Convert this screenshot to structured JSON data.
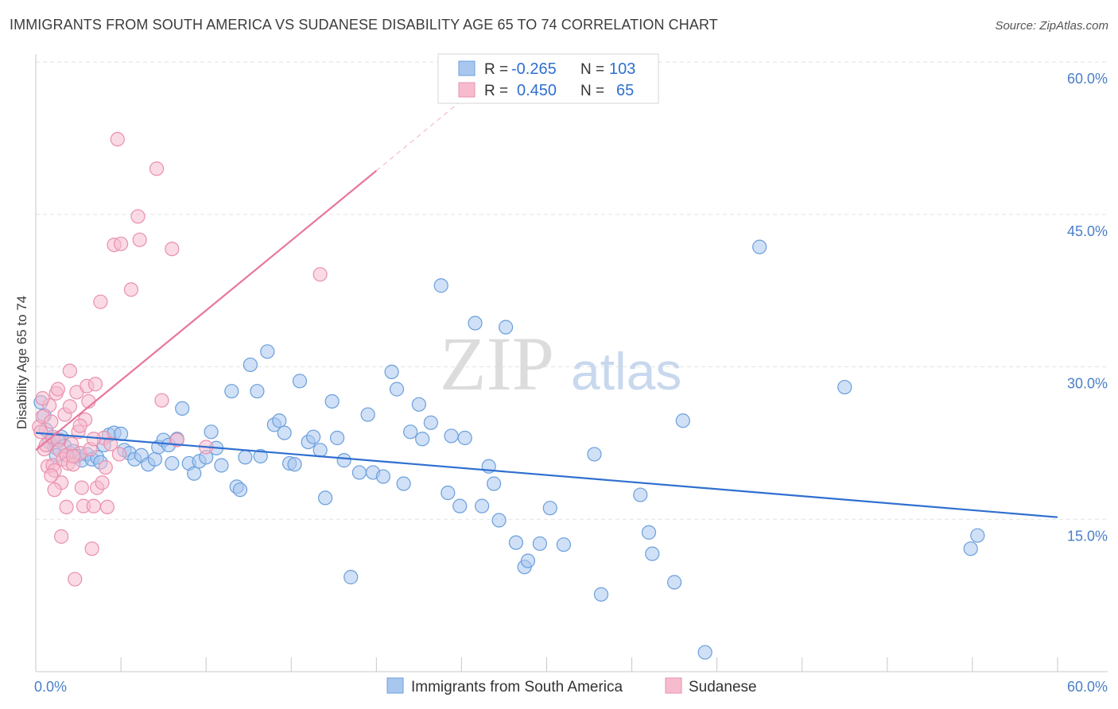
{
  "title": "IMMIGRANTS FROM SOUTH AMERICA VS SUDANESE DISABILITY AGE 65 TO 74 CORRELATION CHART",
  "source": "Source: ZipAtlas.com",
  "watermark": {
    "part1": "ZIP",
    "part2": "atlas"
  },
  "colors": {
    "blue_fill": "#a9c7ee",
    "blue_stroke": "#6a9fdc",
    "blue_line": "#2f6fd0",
    "pink_fill": "#f6bccd",
    "pink_stroke": "#ea8fae",
    "pink_line": "#e8769c",
    "grid": "#e3e3e3",
    "tick_text": "#4a7fc8"
  },
  "legend_stats": [
    {
      "r_label": "R =",
      "r_value": "-0.265",
      "n_label": "N =",
      "n_value": "103"
    },
    {
      "r_label": "R =",
      "r_value": "0.450",
      "n_label": "N =",
      "n_value": "65"
    }
  ],
  "chart_data": {
    "type": "scatter",
    "title": "IMMIGRANTS FROM SOUTH AMERICA VS SUDANESE DISABILITY AGE 65 TO 74 CORRELATION CHART",
    "xlabel": "",
    "ylabel": "Disability Age 65 to 74",
    "xlim": [
      0,
      60
    ],
    "ylim": [
      0,
      60
    ],
    "x_tick_labels": [
      {
        "value": 0,
        "label": "0.0%"
      },
      {
        "value": 60,
        "label": "60.0%"
      }
    ],
    "y_tick_labels": [
      {
        "value": 15,
        "label": "15.0%"
      },
      {
        "value": 30,
        "label": "30.0%"
      },
      {
        "value": 45,
        "label": "45.0%"
      },
      {
        "value": 60,
        "label": "60.0%"
      }
    ],
    "legend_bottom": [
      "Immigrants from South America",
      "Sudanese"
    ],
    "series": [
      {
        "name": "Immigrants from South America",
        "color": "blue",
        "trend": {
          "x0": 0,
          "y0": 23.5,
          "x1": 60,
          "y1": 15.2
        },
        "points": [
          [
            0.3,
            26.5
          ],
          [
            0.5,
            25.2
          ],
          [
            0.6,
            23.8
          ],
          [
            0.8,
            22.6
          ],
          [
            1.0,
            22.9
          ],
          [
            1.1,
            22.1
          ],
          [
            1.2,
            21.3
          ],
          [
            1.4,
            22.8
          ],
          [
            1.5,
            23.1
          ],
          [
            1.7,
            22.2
          ],
          [
            2.0,
            21.5
          ],
          [
            2.2,
            21.7
          ],
          [
            2.4,
            21.2
          ],
          [
            2.7,
            20.8
          ],
          [
            3.0,
            21.4
          ],
          [
            3.3,
            20.9
          ],
          [
            3.6,
            21.1
          ],
          [
            3.8,
            20.6
          ],
          [
            4.0,
            22.3
          ],
          [
            4.3,
            23.3
          ],
          [
            4.6,
            23.5
          ],
          [
            5.0,
            23.4
          ],
          [
            5.2,
            21.8
          ],
          [
            5.5,
            21.5
          ],
          [
            5.8,
            20.9
          ],
          [
            6.2,
            21.3
          ],
          [
            6.6,
            20.4
          ],
          [
            7.0,
            20.9
          ],
          [
            7.2,
            22.1
          ],
          [
            7.5,
            22.8
          ],
          [
            7.8,
            22.3
          ],
          [
            8.0,
            20.5
          ],
          [
            8.3,
            22.9
          ],
          [
            8.6,
            25.9
          ],
          [
            9.0,
            20.5
          ],
          [
            9.3,
            19.5
          ],
          [
            9.6,
            20.7
          ],
          [
            10.0,
            21.1
          ],
          [
            10.3,
            23.6
          ],
          [
            10.6,
            22.0
          ],
          [
            10.9,
            20.3
          ],
          [
            11.5,
            27.6
          ],
          [
            11.8,
            18.2
          ],
          [
            12.0,
            17.9
          ],
          [
            12.3,
            21.1
          ],
          [
            12.6,
            30.2
          ],
          [
            13.0,
            27.6
          ],
          [
            13.2,
            21.2
          ],
          [
            13.6,
            31.5
          ],
          [
            14.0,
            24.3
          ],
          [
            14.3,
            24.7
          ],
          [
            14.6,
            23.5
          ],
          [
            14.9,
            20.5
          ],
          [
            15.2,
            20.4
          ],
          [
            15.5,
            28.6
          ],
          [
            16.0,
            22.6
          ],
          [
            16.3,
            23.1
          ],
          [
            16.7,
            21.8
          ],
          [
            17.0,
            17.1
          ],
          [
            17.4,
            26.6
          ],
          [
            17.7,
            23.0
          ],
          [
            18.1,
            20.8
          ],
          [
            18.5,
            9.3
          ],
          [
            19.0,
            19.6
          ],
          [
            19.5,
            25.3
          ],
          [
            19.8,
            19.6
          ],
          [
            20.4,
            19.2
          ],
          [
            20.9,
            29.5
          ],
          [
            21.2,
            27.8
          ],
          [
            21.6,
            18.5
          ],
          [
            22.0,
            23.6
          ],
          [
            22.5,
            26.3
          ],
          [
            22.7,
            22.9
          ],
          [
            23.2,
            24.5
          ],
          [
            23.8,
            38.0
          ],
          [
            24.2,
            17.6
          ],
          [
            24.4,
            23.2
          ],
          [
            24.9,
            16.3
          ],
          [
            25.2,
            23.0
          ],
          [
            25.8,
            34.3
          ],
          [
            26.2,
            16.3
          ],
          [
            26.6,
            20.2
          ],
          [
            26.9,
            18.5
          ],
          [
            27.2,
            14.9
          ],
          [
            27.6,
            33.9
          ],
          [
            28.2,
            12.7
          ],
          [
            28.7,
            10.3
          ],
          [
            28.9,
            10.9
          ],
          [
            29.6,
            12.6
          ],
          [
            30.2,
            16.1
          ],
          [
            31.0,
            12.5
          ],
          [
            32.8,
            21.4
          ],
          [
            33.2,
            7.6
          ],
          [
            35.5,
            17.4
          ],
          [
            36.0,
            13.7
          ],
          [
            36.2,
            11.6
          ],
          [
            37.5,
            8.8
          ],
          [
            38.0,
            24.7
          ],
          [
            39.3,
            1.9
          ],
          [
            42.5,
            41.8
          ],
          [
            47.5,
            28.0
          ],
          [
            54.9,
            12.1
          ],
          [
            55.3,
            13.4
          ]
        ]
      },
      {
        "name": "Sudanese",
        "color": "pink",
        "trend": {
          "x0": 0,
          "y0": 21.8,
          "x1": 20,
          "y1": 49.3,
          "x_dash_end": 25.5,
          "y_dash_end": 56.9
        },
        "points": [
          [
            0.2,
            24.1
          ],
          [
            0.3,
            23.6
          ],
          [
            0.4,
            25.1
          ],
          [
            0.5,
            21.9
          ],
          [
            0.6,
            22.3
          ],
          [
            0.7,
            20.2
          ],
          [
            0.8,
            26.2
          ],
          [
            0.9,
            24.6
          ],
          [
            1.0,
            23.1
          ],
          [
            1.0,
            20.3
          ],
          [
            1.1,
            19.8
          ],
          [
            1.2,
            27.4
          ],
          [
            1.3,
            27.8
          ],
          [
            1.3,
            22.8
          ],
          [
            1.4,
            21.8
          ],
          [
            1.5,
            18.6
          ],
          [
            1.5,
            13.3
          ],
          [
            1.6,
            20.9
          ],
          [
            1.7,
            25.3
          ],
          [
            1.8,
            21.3
          ],
          [
            1.9,
            20.5
          ],
          [
            2.0,
            29.6
          ],
          [
            2.0,
            26.1
          ],
          [
            2.1,
            22.4
          ],
          [
            2.2,
            20.4
          ],
          [
            2.3,
            9.1
          ],
          [
            2.4,
            27.5
          ],
          [
            2.5,
            23.6
          ],
          [
            2.6,
            21.5
          ],
          [
            2.7,
            18.1
          ],
          [
            2.8,
            16.3
          ],
          [
            2.9,
            24.8
          ],
          [
            3.0,
            28.1
          ],
          [
            3.1,
            26.6
          ],
          [
            3.2,
            21.9
          ],
          [
            3.3,
            12.1
          ],
          [
            3.4,
            16.3
          ],
          [
            3.5,
            28.3
          ],
          [
            3.6,
            18.1
          ],
          [
            3.8,
            36.4
          ],
          [
            3.9,
            18.6
          ],
          [
            4.0,
            23.0
          ],
          [
            4.2,
            16.2
          ],
          [
            4.4,
            22.4
          ],
          [
            4.6,
            42.0
          ],
          [
            4.8,
            52.4
          ],
          [
            4.9,
            21.4
          ],
          [
            5.0,
            42.1
          ],
          [
            5.6,
            37.6
          ],
          [
            6.0,
            44.8
          ],
          [
            6.1,
            42.5
          ],
          [
            7.1,
            49.5
          ],
          [
            7.4,
            26.7
          ],
          [
            8.0,
            41.6
          ],
          [
            8.3,
            22.8
          ],
          [
            10.0,
            22.1
          ],
          [
            16.7,
            39.1
          ],
          [
            0.4,
            26.9
          ],
          [
            0.9,
            19.3
          ],
          [
            1.8,
            16.2
          ],
          [
            2.6,
            24.2
          ],
          [
            3.4,
            22.9
          ],
          [
            4.1,
            20.1
          ],
          [
            2.2,
            21.2
          ],
          [
            1.1,
            17.9
          ]
        ]
      }
    ]
  }
}
